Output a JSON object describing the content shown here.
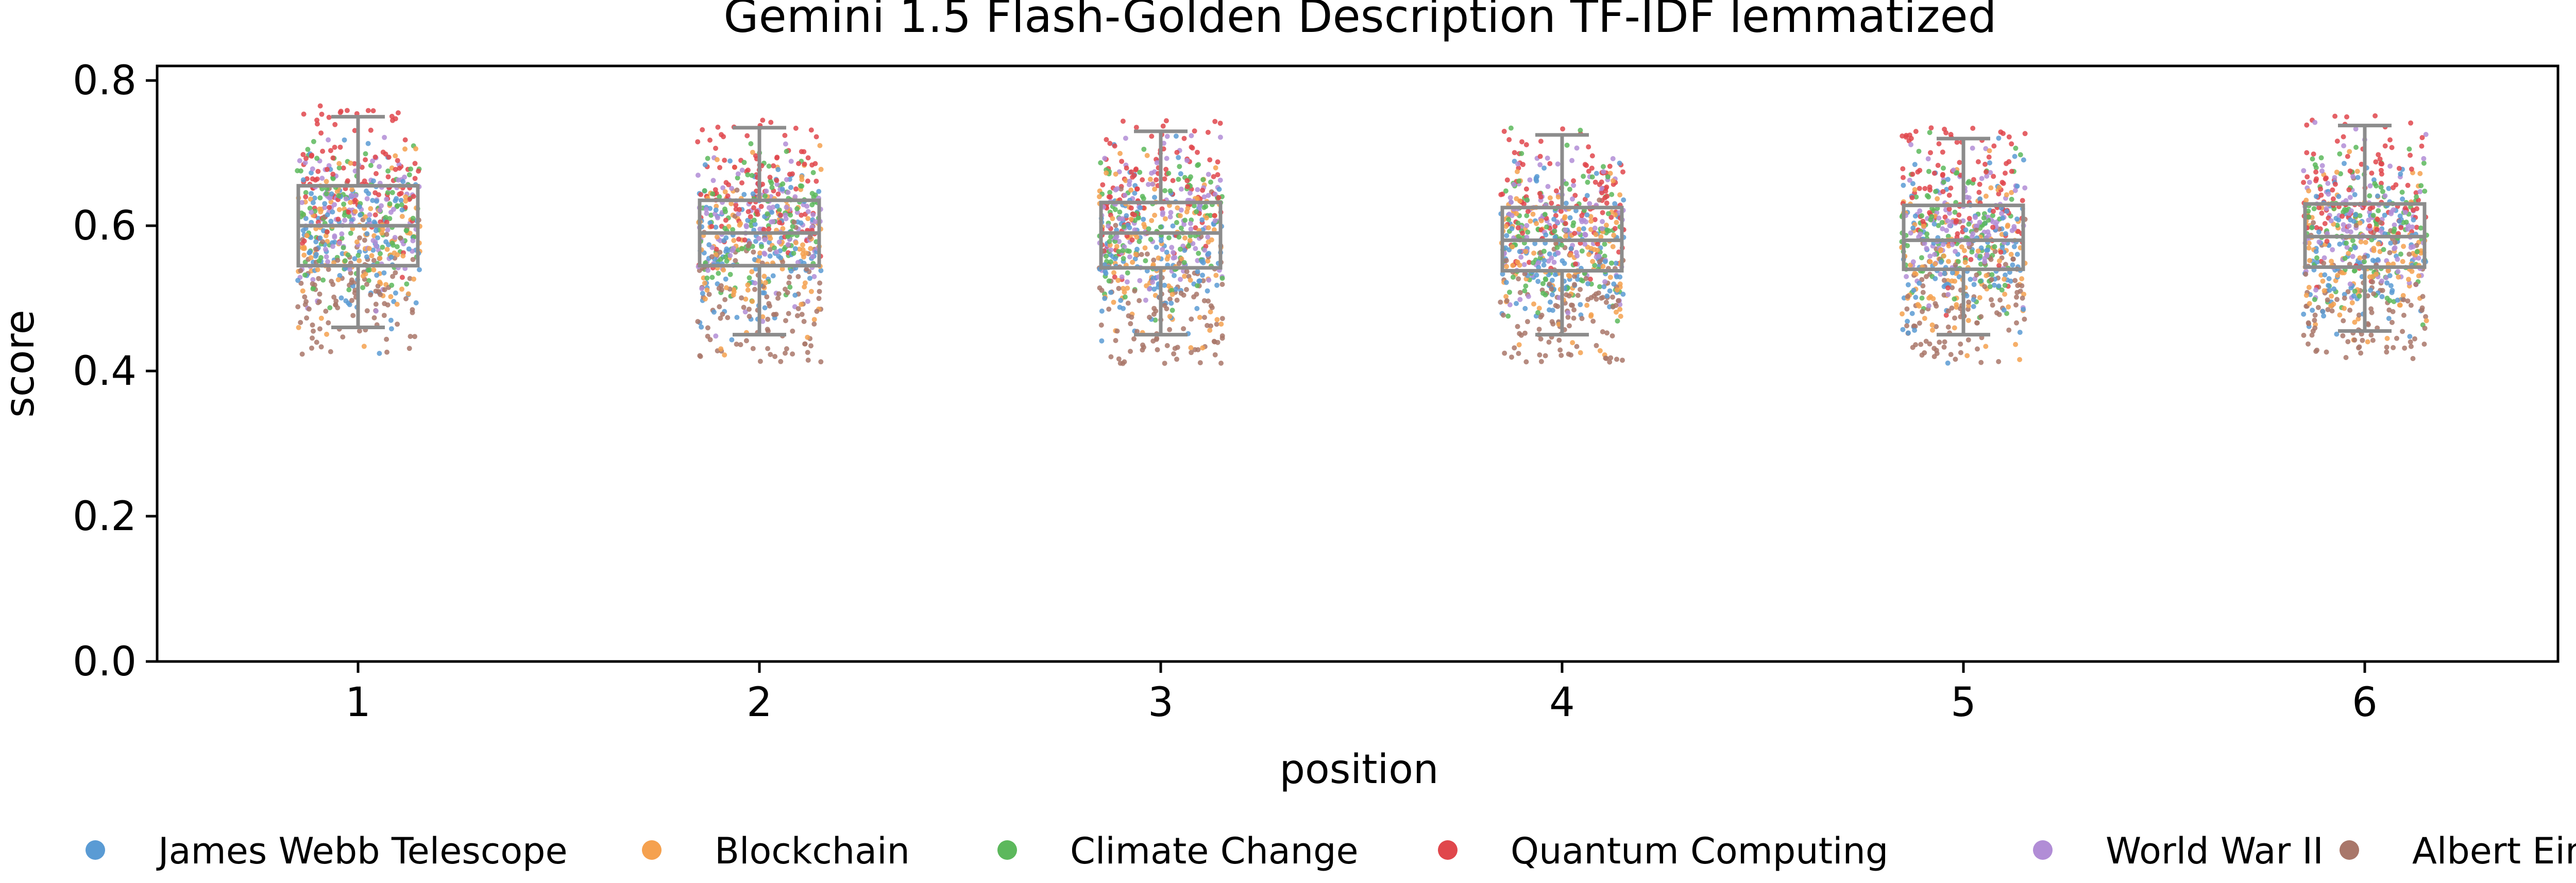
{
  "chart_data": {
    "type": "box-strip",
    "title": "Gemini 1.5 Flash-Golden Description TF-IDF lemmatized",
    "xlabel": "position",
    "ylabel": "score",
    "ylim": [
      0.0,
      0.82
    ],
    "yticks": [
      0.0,
      0.2,
      0.4,
      0.6,
      0.8
    ],
    "ytick_labels": [
      "0.0",
      "0.2",
      "0.4",
      "0.6",
      "0.8"
    ],
    "categories": [
      "1",
      "2",
      "3",
      "4",
      "5",
      "6"
    ],
    "grid": false,
    "legend_position": "bottom",
    "boxes": [
      {
        "position": "1",
        "whisker_low": 0.46,
        "q1": 0.545,
        "median": 0.6,
        "q3": 0.655,
        "whisker_high": 0.75
      },
      {
        "position": "2",
        "whisker_low": 0.45,
        "q1": 0.545,
        "median": 0.59,
        "q3": 0.635,
        "whisker_high": 0.735
      },
      {
        "position": "3",
        "whisker_low": 0.45,
        "q1": 0.542,
        "median": 0.59,
        "q3": 0.632,
        "whisker_high": 0.73
      },
      {
        "position": "4",
        "whisker_low": 0.45,
        "q1": 0.538,
        "median": 0.58,
        "q3": 0.625,
        "whisker_high": 0.725
      },
      {
        "position": "5",
        "whisker_low": 0.45,
        "q1": 0.54,
        "median": 0.58,
        "q3": 0.628,
        "whisker_high": 0.72
      },
      {
        "position": "6",
        "whisker_low": 0.455,
        "q1": 0.543,
        "median": 0.585,
        "q3": 0.63,
        "whisker_high": 0.738
      }
    ],
    "series": [
      {
        "name": "James Webb Telescope",
        "color": "#5a9bd4",
        "mean": 0.575
      },
      {
        "name": "Blockchain",
        "color": "#f5a14f",
        "mean": 0.57
      },
      {
        "name": "Climate Change",
        "color": "#5cb85c",
        "mean": 0.6
      },
      {
        "name": "Quantum Computing",
        "color": "#e0474c",
        "mean": 0.655
      },
      {
        "name": "World War II",
        "color": "#b18dd6",
        "mean": 0.605
      },
      {
        "name": "Albert Einstein",
        "color": "#a9776a",
        "mean": 0.5
      }
    ]
  }
}
